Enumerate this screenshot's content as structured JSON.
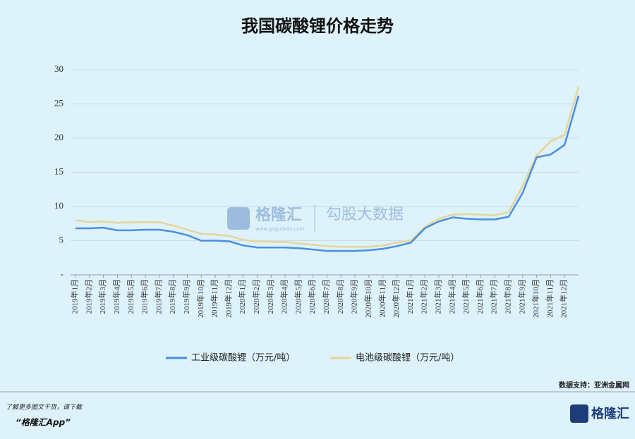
{
  "chart_data": {
    "type": "line",
    "title": "我国碳酸锂价格走势",
    "categories": [
      "2019年1月",
      "2019年2月",
      "2019年3月",
      "2019年4月",
      "2019年5月",
      "2019年6月",
      "2019年7月",
      "2019年8月",
      "2019年9月",
      "2019年10月",
      "2019年11月",
      "2019年12月",
      "2020年1月",
      "2020年2月",
      "2020年3月",
      "2020年4月",
      "2020年5月",
      "2020年6月",
      "2020年7月",
      "2020年8月",
      "2020年9月",
      "2020年10月",
      "2020年11月",
      "2020年12月",
      "2021年1月",
      "2021年2月",
      "2021年3月",
      "2021年4月",
      "2021年5月",
      "2021年6月",
      "2021年7月",
      "2021年8月",
      "2021年9月",
      "2021年10月",
      "2021年11月",
      "2021年12月",
      null
    ],
    "series": [
      {
        "name": "工业级碳酸锂（万元/吨）",
        "color": "#4a8fe0",
        "values": [
          6.8,
          6.8,
          6.9,
          6.5,
          6.5,
          6.6,
          6.6,
          6.3,
          5.8,
          5.0,
          5.0,
          4.9,
          4.3,
          4.0,
          4.0,
          4.0,
          3.9,
          3.7,
          3.5,
          3.5,
          3.5,
          3.6,
          3.8,
          4.2,
          4.7,
          6.8,
          7.8,
          8.4,
          8.2,
          8.1,
          8.1,
          8.5,
          12,
          17.2,
          17.6,
          19.0,
          26.2
        ]
      },
      {
        "name": "电池级碳酸锂（万元/吨）",
        "color": "#e8d49a",
        "values": [
          8.0,
          7.7,
          7.8,
          7.6,
          7.7,
          7.7,
          7.7,
          7.2,
          6.6,
          6.0,
          5.9,
          5.7,
          5.1,
          4.9,
          4.8,
          4.8,
          4.6,
          4.4,
          4.2,
          4.1,
          4.1,
          4.1,
          4.3,
          4.7,
          5.0,
          7.0,
          8.2,
          8.8,
          8.9,
          8.8,
          8.7,
          9.2,
          13,
          17.5,
          19.5,
          20.5,
          27.5
        ]
      }
    ],
    "ylim": [
      0,
      30
    ],
    "yticks": [
      {
        "value": 0,
        "label": "-"
      },
      5,
      10,
      15,
      20,
      25,
      30
    ],
    "grid": true,
    "source": "数据支持：亚洲金属网"
  },
  "watermark": {
    "brand": "格隆汇",
    "site": "www.gogudata.com",
    "product": "勾股大数据"
  },
  "footer": {
    "line1": "了解更多图文干货，请下载",
    "line2": "“格隆汇App”",
    "logo": "格隆汇"
  }
}
